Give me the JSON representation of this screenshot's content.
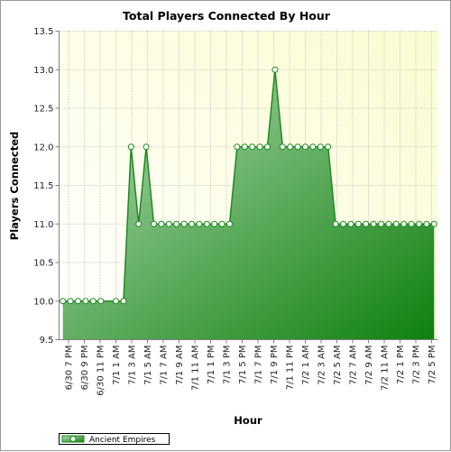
{
  "colors": {
    "series_stroke": "#1f8a1f",
    "fill_light": "#b7dcb7",
    "fill_dark": "#0e800e",
    "plot_bg_light": "#ffffff",
    "plot_bg_yellow": "#fcfcd2",
    "grid": "#a0a0a0"
  },
  "chart_data": {
    "type": "area",
    "title": "Total Players Connected By Hour",
    "xlabel": "Hour",
    "ylabel": "Players Connected",
    "ylim": [
      9.5,
      13.5
    ],
    "y_ticks": [
      "9.5",
      "10.0",
      "10.5",
      "11.0",
      "11.5",
      "12.0",
      "12.5",
      "13.0",
      "13.5"
    ],
    "grid": true,
    "legend_position": "bottom-left",
    "x_tick_labels": [
      "6/30 7 PM",
      "6/30 9 PM",
      "6/30 11 PM",
      "7/1 1 AM",
      "7/1 3 AM",
      "7/1 5 AM",
      "7/1 7 AM",
      "7/1 9 AM",
      "7/1 11 AM",
      "7/1 1 PM",
      "7/1 3 PM",
      "7/1 5 PM",
      "7/1 7 PM",
      "7/1 9 PM",
      "7/1 11 PM",
      "7/2 1 AM",
      "7/2 3 AM",
      "7/2 5 AM",
      "7/2 7 AM",
      "7/2 9 AM",
      "7/2 11 AM",
      "7/2 1 PM",
      "7/2 3 PM",
      "7/2 5 PM"
    ],
    "series": [
      {
        "name": "Ancient Empires",
        "values": [
          10,
          10,
          10,
          10,
          10,
          10,
          null,
          10,
          10,
          12,
          11,
          12,
          11,
          11,
          11,
          11,
          11,
          11,
          11,
          11,
          11,
          11,
          11,
          12,
          12,
          12,
          12,
          12,
          13,
          12,
          12,
          12,
          12,
          12,
          12,
          12,
          11,
          11,
          11,
          11,
          11,
          11,
          11,
          11,
          11,
          11,
          11,
          11,
          11,
          11
        ]
      }
    ]
  }
}
